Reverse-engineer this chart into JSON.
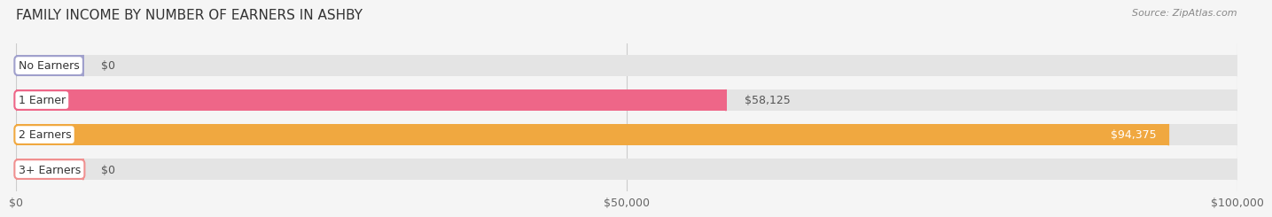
{
  "title": "FAMILY INCOME BY NUMBER OF EARNERS IN ASHBY",
  "source": "Source: ZipAtlas.com",
  "categories": [
    "No Earners",
    "1 Earner",
    "2 Earners",
    "3+ Earners"
  ],
  "values": [
    0,
    58125,
    94375,
    0
  ],
  "max_value": 100000,
  "bar_colors": [
    "#a0a0cc",
    "#ee6688",
    "#f0a840",
    "#f09090"
  ],
  "bar_bg_color": "#e4e4e4",
  "bar_height": 0.62,
  "tick_labels": [
    "$0",
    "$50,000",
    "$100,000"
  ],
  "tick_values": [
    0,
    50000,
    100000
  ],
  "value_labels": [
    "$0",
    "$58,125",
    "$94,375",
    "$0"
  ],
  "title_fontsize": 11,
  "source_fontsize": 8,
  "background_color": "#f5f5f5",
  "stub_value": 5500
}
